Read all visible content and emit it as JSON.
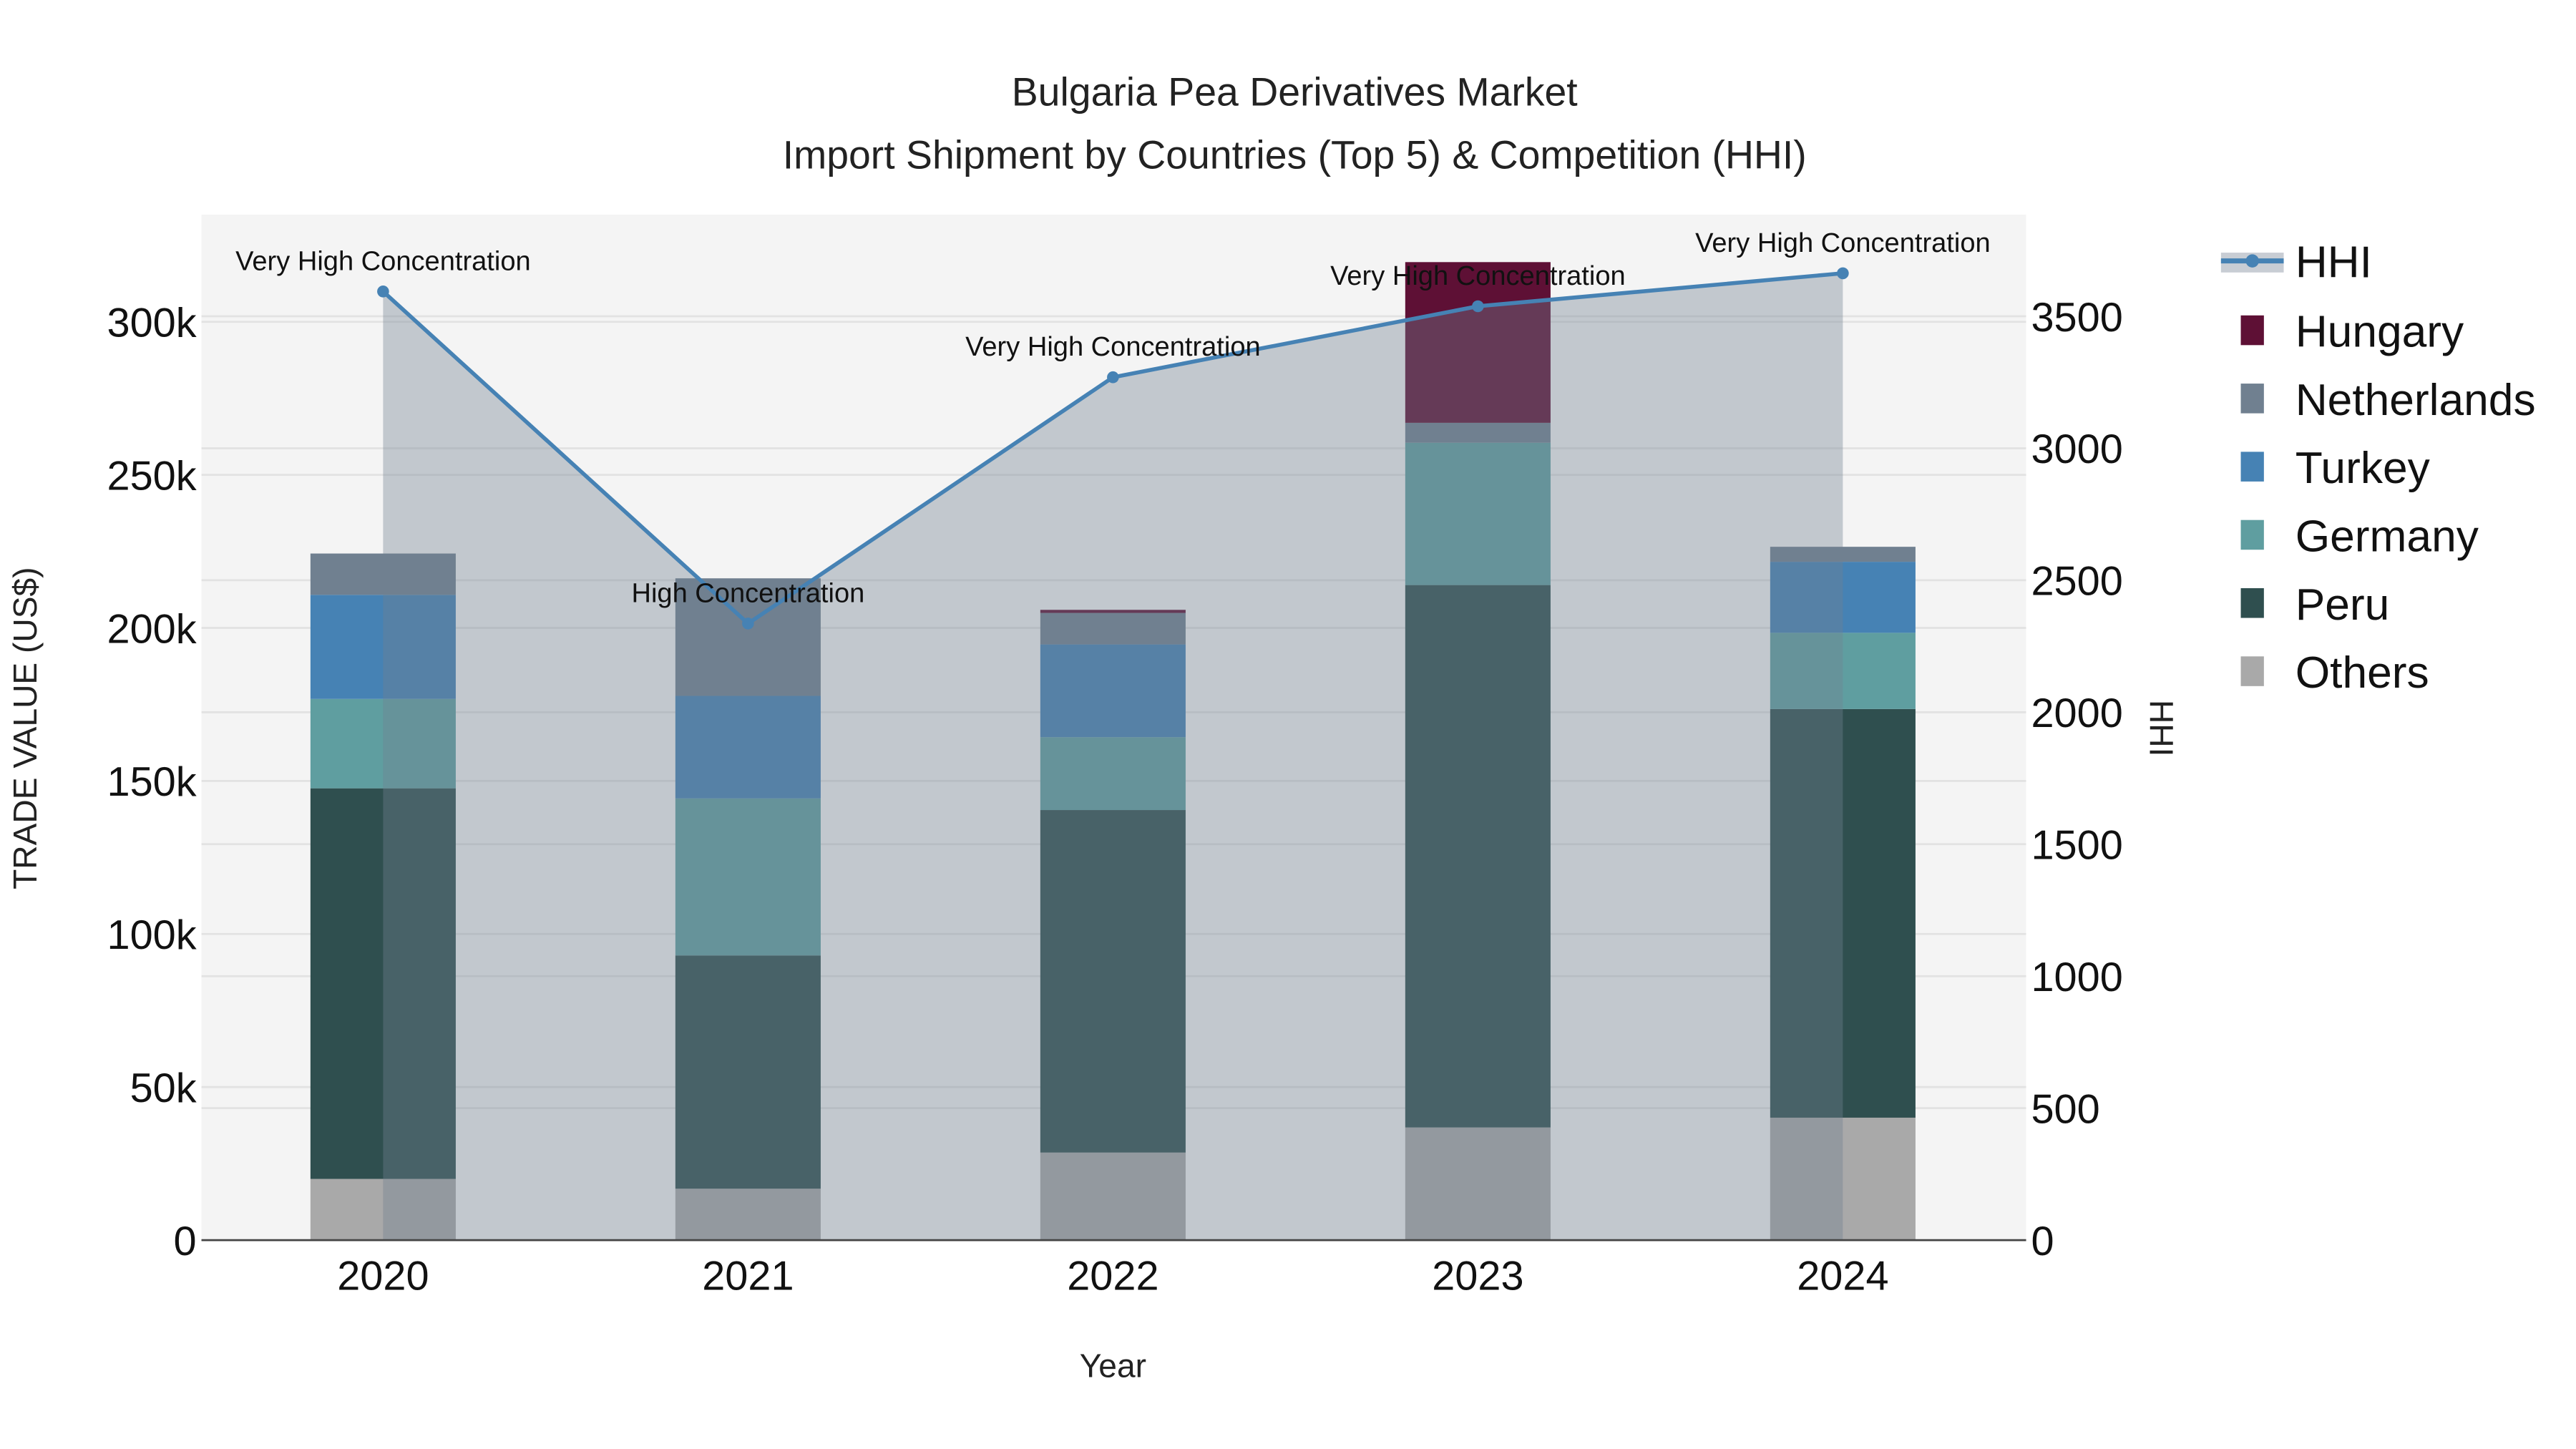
{
  "chart_data": {
    "type": "bar",
    "title": "Bulgaria Pea Derivatives Market",
    "subtitle": "Import Shipment by Countries (Top 5) & Competition (HHI)",
    "xlabel": "Year",
    "ylabel": "TRADE VALUE (US$)",
    "y2label": "HHI",
    "categories": [
      "2020",
      "2021",
      "2022",
      "2023",
      "2024"
    ],
    "ylim": [
      0,
      335000
    ],
    "y2lim": [
      0,
      3885
    ],
    "yticks": [
      0,
      50000,
      100000,
      150000,
      200000,
      250000,
      300000
    ],
    "ytick_labels": [
      "0",
      "50k",
      "100k",
      "150k",
      "200k",
      "250k",
      "300k"
    ],
    "y2ticks": [
      0,
      500,
      1000,
      1500,
      2000,
      2500,
      3000,
      3500
    ],
    "y2tick_labels": [
      "0",
      "500",
      "1000",
      "1500",
      "2000",
      "2500",
      "3000",
      "3500"
    ],
    "grid": true,
    "legend_position": "right",
    "stack_order": [
      "Others",
      "Peru",
      "Germany",
      "Turkey",
      "Netherlands",
      "Hungary"
    ],
    "series": [
      {
        "name": "Hungary",
        "color": "#5e1035",
        "values": [
          0,
          0,
          1000,
          52500,
          0
        ]
      },
      {
        "name": "Netherlands",
        "color": "#708090",
        "values": [
          13500,
          38400,
          10300,
          6500,
          4900
        ]
      },
      {
        "name": "Turkey",
        "color": "#4682b4",
        "values": [
          34000,
          33500,
          30300,
          0,
          23200
        ]
      },
      {
        "name": "Germany",
        "color": "#5f9ea0",
        "values": [
          29200,
          51300,
          23800,
          46500,
          24900
        ]
      },
      {
        "name": "Peru",
        "color": "#2f4f4f",
        "values": [
          127600,
          76200,
          111900,
          177200,
          133500
        ]
      },
      {
        "name": "Others",
        "color": "#a9a9a9",
        "values": [
          20000,
          16800,
          28600,
          36800,
          40000
        ]
      }
    ],
    "hhi": {
      "name": "HHI",
      "color": "#4682b4",
      "values": [
        3594,
        2336,
        3269,
        3538,
        3663
      ],
      "annotations": [
        "Very High Concentration",
        "High Concentration",
        "Very High Concentration",
        "Very High Concentration",
        "Very High Concentration"
      ]
    },
    "legend": [
      "HHI",
      "Hungary",
      "Netherlands",
      "Turkey",
      "Germany",
      "Peru",
      "Others"
    ]
  }
}
